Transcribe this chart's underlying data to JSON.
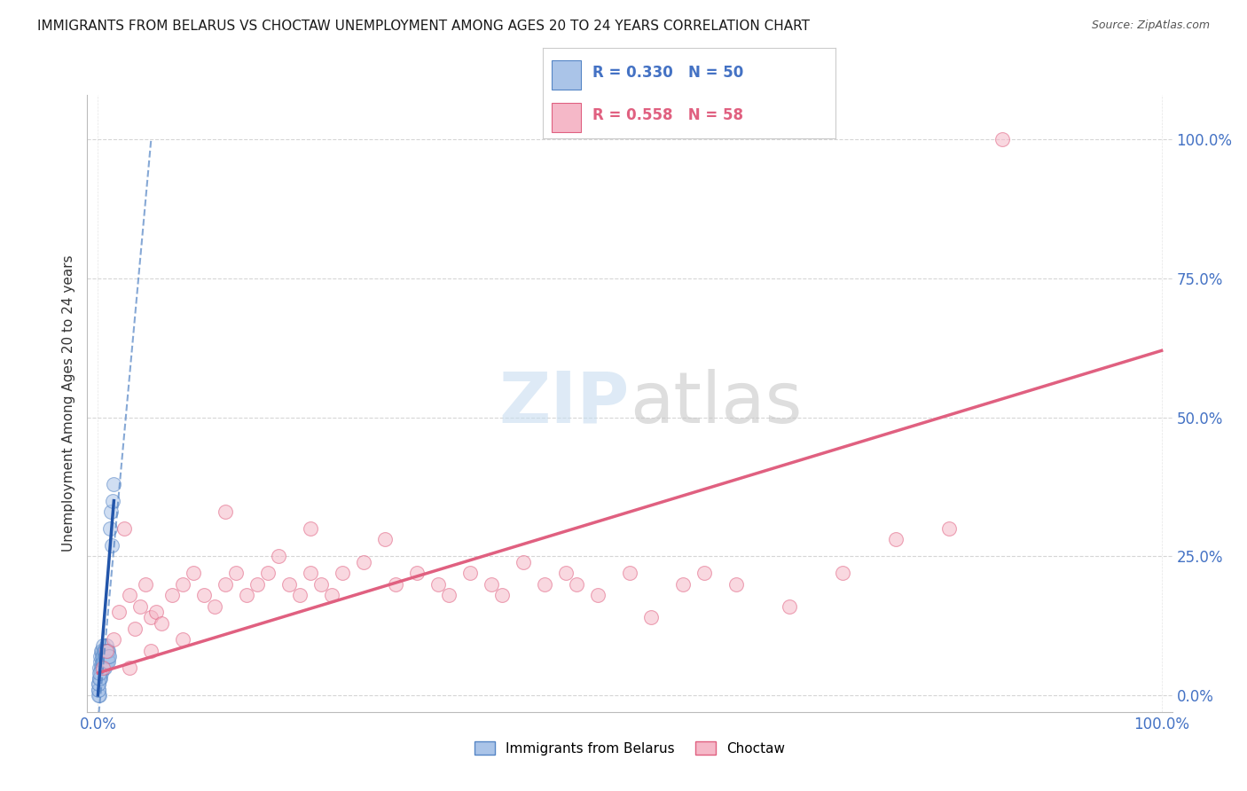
{
  "title": "IMMIGRANTS FROM BELARUS VS CHOCTAW UNEMPLOYMENT AMONG AGES 20 TO 24 YEARS CORRELATION CHART",
  "source": "Source: ZipAtlas.com",
  "ylabel": "Unemployment Among Ages 20 to 24 years",
  "ytick_values": [
    0,
    25,
    50,
    75,
    100
  ],
  "legend_entries": [
    {
      "label": "Immigrants from Belarus",
      "R": 0.33,
      "N": 50,
      "color": "#aac4e8",
      "edge_color": "#5585c5",
      "line_color": "#5585c5"
    },
    {
      "label": "Choctaw",
      "R": 0.558,
      "N": 58,
      "color": "#f5b8c8",
      "edge_color": "#e06080",
      "line_color": "#e06080"
    }
  ],
  "watermark_text": "ZIPatlas",
  "background_color": "#ffffff",
  "grid_color": "#cccccc",
  "blue_scatter_x": [
    0.05,
    0.08,
    0.1,
    0.12,
    0.15,
    0.18,
    0.2,
    0.22,
    0.25,
    0.28,
    0.3,
    0.32,
    0.35,
    0.38,
    0.4,
    0.42,
    0.45,
    0.48,
    0.5,
    0.52,
    0.55,
    0.58,
    0.6,
    0.62,
    0.65,
    0.68,
    0.7,
    0.72,
    0.75,
    0.78,
    0.8,
    0.82,
    0.85,
    0.88,
    0.9,
    0.92,
    0.95,
    0.98,
    1.0,
    1.05,
    1.1,
    1.2,
    1.3,
    1.4,
    1.5,
    0.05,
    0.05,
    0.08,
    0.1,
    0.15
  ],
  "blue_scatter_y": [
    2,
    1,
    0,
    3,
    5,
    4,
    6,
    3,
    7,
    5,
    8,
    4,
    6,
    5,
    7,
    8,
    6,
    9,
    7,
    5,
    8,
    6,
    7,
    5,
    8,
    7,
    6,
    8,
    7,
    6,
    9,
    7,
    8,
    6,
    7,
    8,
    7,
    6,
    8,
    7,
    30,
    33,
    27,
    35,
    38,
    0,
    1,
    2,
    3,
    4
  ],
  "pink_scatter_x": [
    0.5,
    0.8,
    1.5,
    2.0,
    2.5,
    3.0,
    3.5,
    4.0,
    4.5,
    5.0,
    5.5,
    6.0,
    7.0,
    8.0,
    9.0,
    10.0,
    11.0,
    12.0,
    13.0,
    14.0,
    15.0,
    16.0,
    17.0,
    18.0,
    19.0,
    20.0,
    21.0,
    22.0,
    23.0,
    25.0,
    27.0,
    28.0,
    30.0,
    32.0,
    33.0,
    35.0,
    37.0,
    38.0,
    40.0,
    42.0,
    44.0,
    45.0,
    47.0,
    50.0,
    52.0,
    55.0,
    57.0,
    60.0,
    65.0,
    70.0,
    75.0,
    80.0,
    85.0,
    3.0,
    5.0,
    8.0,
    12.0,
    20.0
  ],
  "pink_scatter_y": [
    5,
    8,
    10,
    15,
    30,
    18,
    12,
    16,
    20,
    14,
    15,
    13,
    18,
    20,
    22,
    18,
    16,
    20,
    22,
    18,
    20,
    22,
    25,
    20,
    18,
    22,
    20,
    18,
    22,
    24,
    28,
    20,
    22,
    20,
    18,
    22,
    20,
    18,
    24,
    20,
    22,
    20,
    18,
    22,
    14,
    20,
    22,
    20,
    16,
    22,
    28,
    30,
    100,
    5,
    8,
    10,
    33,
    30
  ],
  "belarus_dashed_x0": 0.0,
  "belarus_dashed_y0": -5,
  "belarus_dashed_x1": 5.0,
  "belarus_dashed_y1": 100,
  "belarus_solid_x0": 0.0,
  "belarus_solid_y0": 0.0,
  "belarus_solid_x1": 1.5,
  "belarus_solid_y1": 35,
  "choctaw_x0": 0.0,
  "choctaw_y0": 4.0,
  "choctaw_x1": 100.0,
  "choctaw_y1": 62.0,
  "point_size": 130,
  "point_alpha": 0.55,
  "xlim": [
    -1,
    101
  ],
  "ylim": [
    -3,
    108
  ]
}
